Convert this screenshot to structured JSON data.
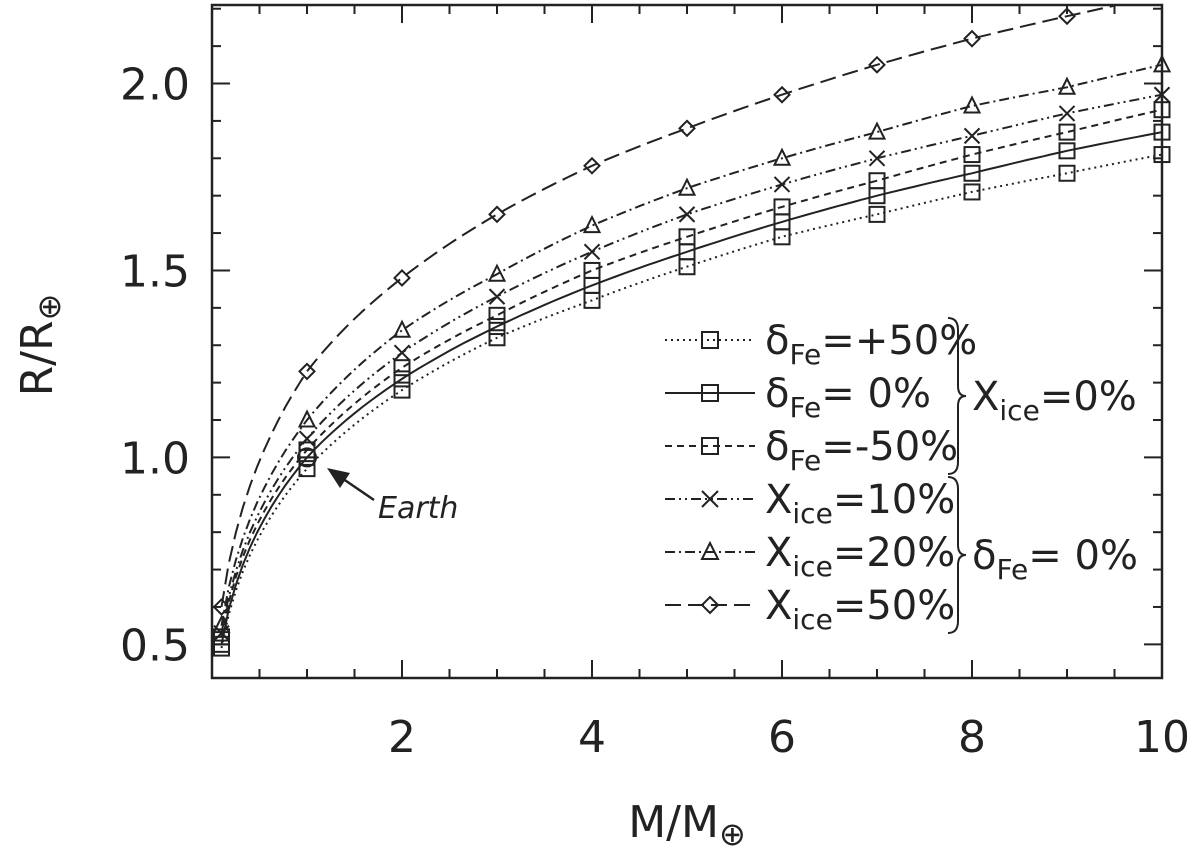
{
  "chart_data": {
    "type": "line",
    "xlabel": {
      "main": "M/M",
      "sym": "⊕"
    },
    "ylabel": {
      "main": "R/R",
      "sym": "⊕"
    },
    "xlim": [
      0,
      10
    ],
    "ylim": [
      0.41,
      2.21
    ],
    "xticks": [
      2,
      4,
      6,
      8,
      10
    ],
    "xtick_labels": [
      "2",
      "4",
      "6",
      "8",
      "10"
    ],
    "yticks": [
      0.5,
      1.0,
      1.5,
      2.0
    ],
    "ytick_labels": [
      "0.5",
      "1.0",
      "1.5",
      "2.0"
    ],
    "grid": false,
    "legend_position": "lower-right",
    "series": [
      {
        "key": "dfe_p50",
        "dash": "dotted",
        "marker": "square",
        "label_sym": "δ",
        "label_sub": "Fe",
        "label_val": "=+50%",
        "x": [
          0.1,
          1,
          2,
          3,
          4,
          5,
          6,
          7,
          8,
          9,
          10
        ],
        "y": [
          0.49,
          0.97,
          1.18,
          1.32,
          1.42,
          1.51,
          1.59,
          1.65,
          1.71,
          1.76,
          1.81
        ]
      },
      {
        "key": "dfe_0",
        "dash": "solid",
        "marker": "square",
        "label_sym": "δ",
        "label_sub": "Fe",
        "label_val": "= 0%",
        "x": [
          0.1,
          1,
          2,
          3,
          4,
          5,
          6,
          7,
          8,
          9,
          10
        ],
        "y": [
          0.5,
          1.0,
          1.21,
          1.35,
          1.46,
          1.55,
          1.63,
          1.7,
          1.76,
          1.82,
          1.87
        ]
      },
      {
        "key": "dfe_m50",
        "dash": "dashed-short",
        "marker": "square",
        "label_sym": "δ",
        "label_sub": "Fe",
        "label_val": "=-50%",
        "x": [
          0.1,
          1,
          2,
          3,
          4,
          5,
          6,
          7,
          8,
          9,
          10
        ],
        "y": [
          0.52,
          1.02,
          1.24,
          1.38,
          1.5,
          1.59,
          1.67,
          1.74,
          1.81,
          1.87,
          1.93
        ]
      },
      {
        "key": "xice_10",
        "dash": "dash-dot-dot",
        "marker": "x",
        "label_sym": "X",
        "label_sub": "ice",
        "label_val": "=10%",
        "x": [
          0.1,
          1,
          2,
          3,
          4,
          5,
          6,
          7,
          8,
          9,
          10
        ],
        "y": [
          0.53,
          1.05,
          1.28,
          1.43,
          1.55,
          1.65,
          1.73,
          1.8,
          1.86,
          1.92,
          1.97
        ]
      },
      {
        "key": "xice_20",
        "dash": "dash-dot",
        "marker": "triangle",
        "label_sym": "X",
        "label_sub": "ice",
        "label_val": "=20%",
        "x": [
          0.1,
          1,
          2,
          3,
          4,
          5,
          6,
          7,
          8,
          9,
          10
        ],
        "y": [
          0.55,
          1.1,
          1.34,
          1.49,
          1.62,
          1.72,
          1.8,
          1.87,
          1.94,
          1.99,
          2.05
        ]
      },
      {
        "key": "xice_50",
        "dash": "long-dash",
        "marker": "diamond",
        "label_sym": "X",
        "label_sub": "ice",
        "label_val": "=50%",
        "x": [
          0.1,
          1,
          2,
          3,
          4,
          5,
          6,
          7,
          8,
          9
        ],
        "y": [
          0.6,
          1.23,
          1.48,
          1.65,
          1.78,
          1.88,
          1.97,
          2.05,
          2.12,
          2.18
        ]
      }
    ],
    "braces": [
      {
        "label_sym": "X",
        "label_sub": "ice",
        "label_val": "=0%",
        "series_span": [
          0,
          2
        ]
      },
      {
        "label_sym": "δ",
        "label_sub": "Fe",
        "label_val": "= 0%",
        "series_span": [
          3,
          5
        ]
      }
    ],
    "annotation": {
      "text": "Earth",
      "x": 1,
      "y": 1.0
    }
  }
}
